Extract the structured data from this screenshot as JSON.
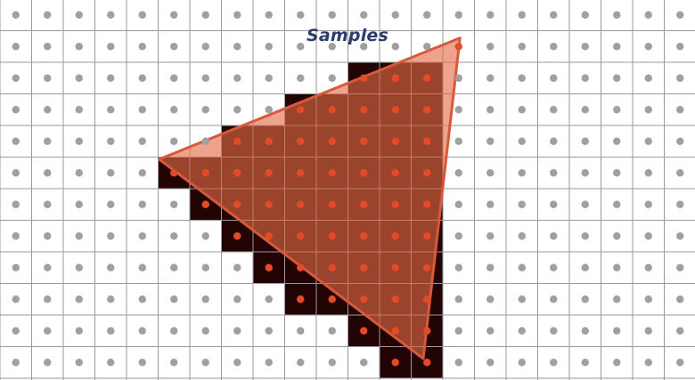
{
  "title": "Samples",
  "colors": {
    "background": "#ffffff",
    "grid_line": "#9a9a9a",
    "sample_dot": "#a0a0a0",
    "sample_dot_inside": "#e34b27",
    "covered_pixel": "#220405",
    "triangle_fill": "#e46a47",
    "triangle_stroke": "#d8593a",
    "title": "#2c3c6c"
  },
  "grid": {
    "columns": 22,
    "rows": 12
  },
  "triangle": {
    "vertices": [
      [
        5.03,
        5.07
      ],
      [
        14.54,
        1.23
      ],
      [
        13.38,
        11.38
      ]
    ]
  },
  "covered_pixels": {
    "rows": [
      {
        "row": 2,
        "cols": [
          11,
          12,
          13
        ]
      },
      {
        "row": 3,
        "cols": [
          9,
          10,
          11,
          12,
          13
        ]
      },
      {
        "row": 4,
        "cols": [
          7,
          8,
          9,
          10,
          11,
          12,
          13
        ]
      },
      {
        "row": 5,
        "cols": [
          5,
          6,
          7,
          8,
          9,
          10,
          11,
          12,
          13
        ]
      },
      {
        "row": 6,
        "cols": [
          6,
          7,
          8,
          9,
          10,
          11,
          12,
          13
        ]
      },
      {
        "row": 7,
        "cols": [
          7,
          8,
          9,
          10,
          11,
          12,
          13
        ]
      },
      {
        "row": 8,
        "cols": [
          8,
          9,
          10,
          11,
          12,
          13
        ]
      },
      {
        "row": 9,
        "cols": [
          9,
          10,
          11,
          12,
          13
        ]
      },
      {
        "row": 10,
        "cols": [
          11,
          12,
          13
        ]
      },
      {
        "row": 11,
        "cols": [
          12,
          13
        ]
      }
    ]
  },
  "extra_marks": [
    {
      "kind": "inside_sample",
      "col": 14,
      "row": 1
    }
  ]
}
